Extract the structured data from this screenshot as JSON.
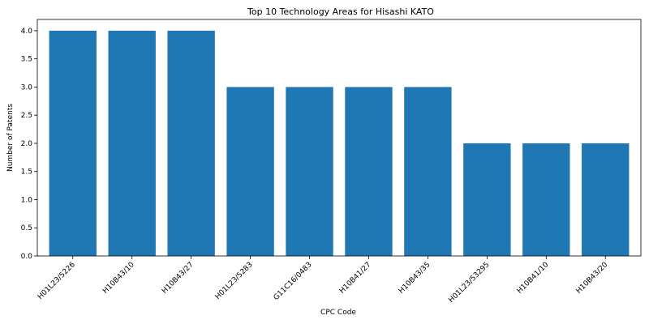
{
  "chart_data": {
    "type": "bar",
    "title": "Top 10 Technology Areas for Hisashi KATO",
    "xlabel": "CPC Code",
    "ylabel": "Number of Patents",
    "categories": [
      "H01L23/5226",
      "H10B43/10",
      "H10B43/27",
      "H01L23/5283",
      "G11C16/0483",
      "H10B41/27",
      "H10B43/35",
      "H01L23/53295",
      "H10B41/10",
      "H10B43/20"
    ],
    "values": [
      4,
      4,
      4,
      3,
      3,
      3,
      3,
      2,
      2,
      2
    ],
    "ylim": [
      0,
      4.2
    ],
    "yticks": [
      "0.0",
      "0.5",
      "1.0",
      "1.5",
      "2.0",
      "2.5",
      "3.0",
      "3.5",
      "4.0"
    ],
    "grid": false,
    "bar_color": "#1f77b4"
  }
}
